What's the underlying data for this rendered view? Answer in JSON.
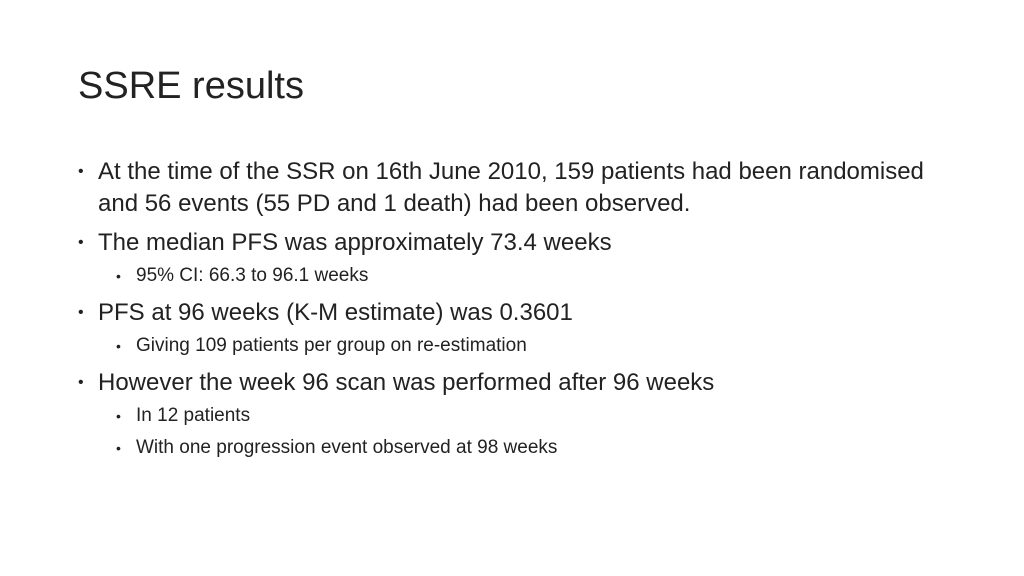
{
  "slide": {
    "title": "SSRE results",
    "bullet_glyph": "•",
    "items": [
      {
        "level": 1,
        "text": "At the time of the SSR on 16th June 2010, 159 patients had been randomised and 56 events (55 PD and 1 death) had been observed."
      },
      {
        "level": 1,
        "text": "The median PFS was approximately 73.4 weeks"
      },
      {
        "level": 2,
        "text": "95% CI: 66.3 to 96.1 weeks"
      },
      {
        "level": 1,
        "text": "PFS at 96 weeks (K-M estimate) was 0.3601"
      },
      {
        "level": 2,
        "text": "Giving 109 patients per group on re-estimation"
      },
      {
        "level": 1,
        "text": "However the week 96 scan was performed after 96 weeks"
      },
      {
        "level": 2,
        "text": "In 12 patients"
      },
      {
        "level": 2,
        "text": "With one progression event observed at 98 weeks"
      }
    ]
  }
}
